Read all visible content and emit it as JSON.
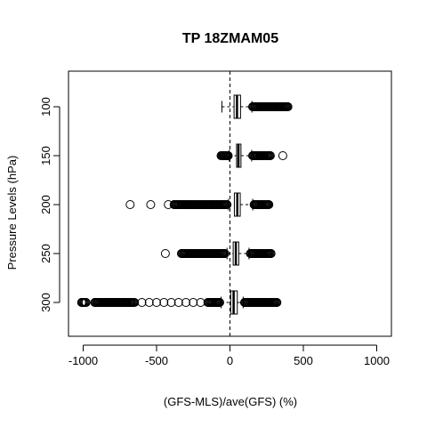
{
  "chart_data": {
    "type": "boxplot",
    "orientation": "horizontal",
    "title": "TP 18ZMAM05",
    "xlabel": "(GFS-MLS)/ave(GFS) (%)",
    "ylabel": "Pressure Levels (hPa)",
    "xlim": [
      -1100,
      1100
    ],
    "x_ticks": [
      -1000,
      -500,
      0,
      500,
      1000
    ],
    "x_tick_labels": [
      "-1000",
      "-500",
      "0",
      "500",
      "1000"
    ],
    "reference_line_x": 0,
    "categories": [
      "100",
      "150",
      "200",
      "250",
      "300"
    ],
    "boxes": [
      {
        "level": "100",
        "whisker_low": -55,
        "q1": 28,
        "median": 48,
        "q3": 72,
        "whisker_high": 150,
        "outliers_low": [],
        "outliers_high": [
          155,
          170,
          190,
          210,
          230,
          250,
          270,
          290,
          310,
          330,
          350,
          365,
          380,
          395
        ]
      },
      {
        "level": "150",
        "whisker_low": -5,
        "q1": 45,
        "median": 58,
        "q3": 75,
        "whisker_high": 148,
        "outliers_low": [
          -60,
          -50,
          -40,
          -30,
          -20,
          -12
        ],
        "outliers_high": [
          155,
          170,
          185,
          200,
          215,
          230,
          250,
          275,
          360
        ]
      },
      {
        "level": "200",
        "whisker_low": -10,
        "q1": 30,
        "median": 50,
        "q3": 70,
        "whisker_high": 155,
        "outliers_low": [
          -680,
          -540,
          -420,
          -380,
          -350,
          -320,
          -300,
          -280,
          -260,
          -240,
          -220,
          -200,
          -180,
          -160,
          -140,
          -120,
          -100,
          -80,
          -60,
          -40,
          -20
        ],
        "outliers_high": [
          165,
          180,
          200,
          220,
          240,
          255,
          265
        ]
      },
      {
        "level": "250",
        "whisker_low": -20,
        "q1": 22,
        "median": 40,
        "q3": 60,
        "whisker_high": 130,
        "outliers_low": [
          -440,
          -330,
          -310,
          -290,
          -270,
          -250,
          -230,
          -210,
          -190,
          -170,
          -150,
          -130,
          -110,
          -90,
          -70,
          -50,
          -35
        ],
        "outliers_high": [
          140,
          160,
          180,
          200,
          220,
          240,
          260,
          280
        ]
      },
      {
        "level": "300",
        "whisker_low": -60,
        "q1": 5,
        "median": 25,
        "q3": 50,
        "whisker_high": 90,
        "outliers_low": [
          -1010,
          -980,
          -920,
          -900,
          -880,
          -860,
          -840,
          -820,
          -800,
          -780,
          -760,
          -740,
          -720,
          -700,
          -680,
          -650,
          -600,
          -550,
          -500,
          -450,
          -400,
          -350,
          -300,
          -250,
          -200,
          -150,
          -120,
          -90,
          -70
        ],
        "outliers_high": [
          100,
          120,
          140,
          160,
          180,
          200,
          220,
          240,
          260,
          280,
          300,
          320
        ]
      }
    ]
  }
}
